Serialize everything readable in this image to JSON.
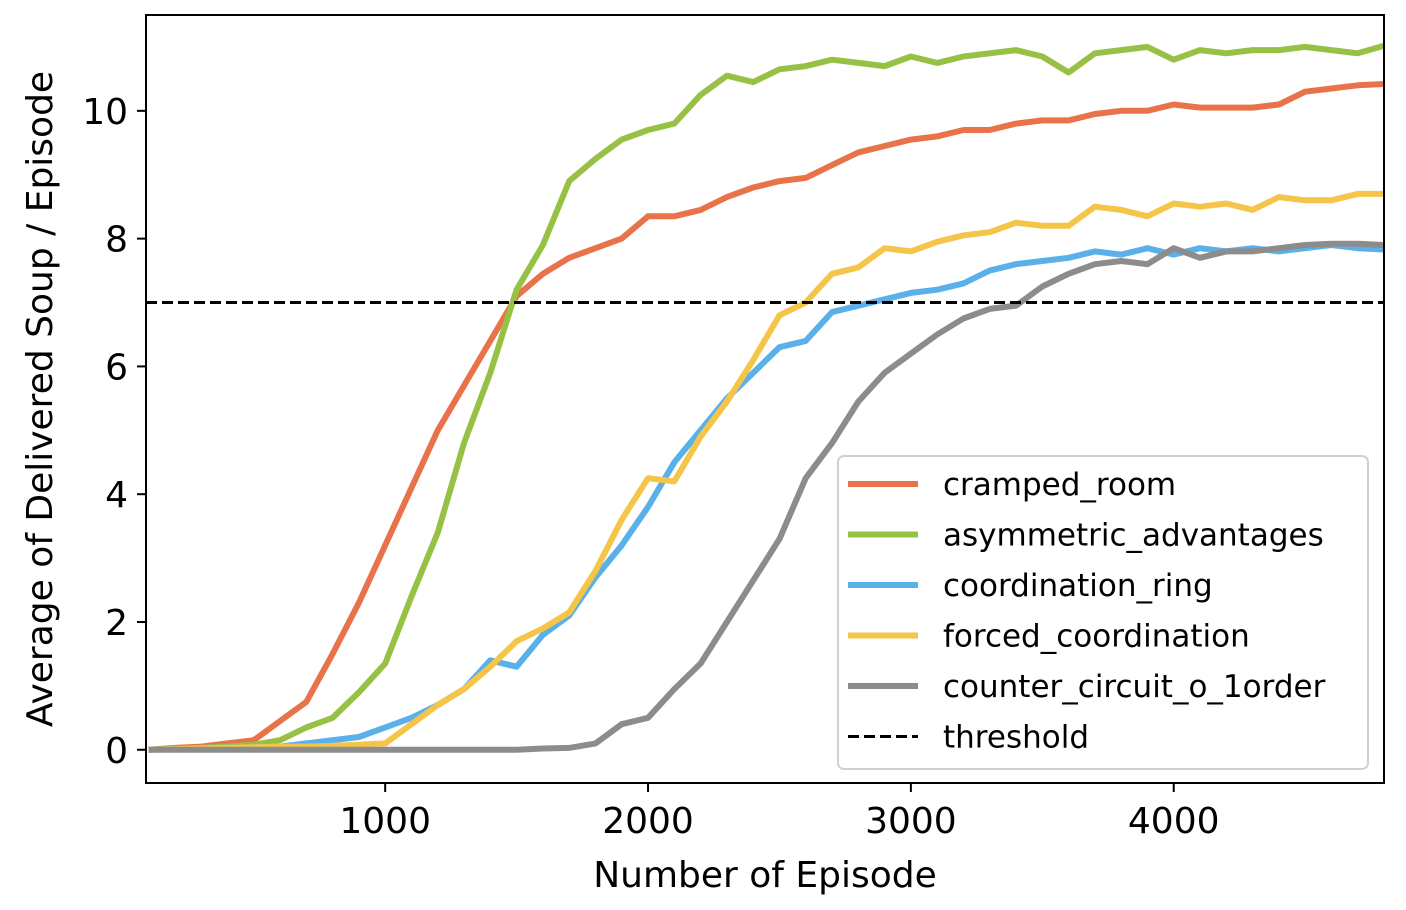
{
  "chart_data": {
    "type": "line",
    "xlabel": "Number of Episode",
    "ylabel": "Average of Delivered Soup / Episode",
    "xlim": [
      90,
      4800
    ],
    "ylim": [
      -0.52,
      11.5
    ],
    "xticks": [
      1000,
      2000,
      3000,
      4000
    ],
    "yticks": [
      0,
      2,
      4,
      6,
      8,
      10
    ],
    "grid": false,
    "legend_position": "lower-right",
    "x": [
      100,
      200,
      300,
      400,
      500,
      600,
      700,
      800,
      900,
      1000,
      1100,
      1200,
      1300,
      1400,
      1500,
      1600,
      1700,
      1800,
      1900,
      2000,
      2100,
      2200,
      2300,
      2400,
      2500,
      2600,
      2700,
      2800,
      2900,
      3000,
      3100,
      3200,
      3300,
      3400,
      3500,
      3600,
      3700,
      3800,
      3900,
      4000,
      4100,
      4200,
      4300,
      4400,
      4500,
      4600,
      4700,
      4800
    ],
    "series": [
      {
        "name": "cramped_room",
        "color": "#e8734a",
        "values": [
          0,
          0.03,
          0.05,
          0.1,
          0.15,
          0.45,
          0.75,
          1.5,
          2.3,
          3.2,
          4.1,
          5.0,
          5.7,
          6.4,
          7.1,
          7.45,
          7.7,
          7.85,
          8.0,
          8.35,
          8.35,
          8.45,
          8.65,
          8.8,
          8.9,
          8.95,
          9.15,
          9.35,
          9.45,
          9.55,
          9.6,
          9.7,
          9.7,
          9.8,
          9.85,
          9.85,
          9.95,
          10.0,
          10.0,
          10.1,
          10.05,
          10.05,
          10.05,
          10.1,
          10.3,
          10.35,
          10.4,
          10.42
        ]
      },
      {
        "name": "asymmetric_advantages",
        "color": "#97c144",
        "values": [
          0,
          0.02,
          0.03,
          0.05,
          0.08,
          0.15,
          0.35,
          0.5,
          0.9,
          1.35,
          2.4,
          3.4,
          4.8,
          5.9,
          7.2,
          7.9,
          8.9,
          9.25,
          9.55,
          9.7,
          9.8,
          10.25,
          10.55,
          10.45,
          10.65,
          10.7,
          10.8,
          10.75,
          10.7,
          10.85,
          10.75,
          10.85,
          10.9,
          10.95,
          10.85,
          10.6,
          10.9,
          10.95,
          11.0,
          10.8,
          10.95,
          10.9,
          10.95,
          10.95,
          11.0,
          10.95,
          10.9,
          11.02
        ]
      },
      {
        "name": "coordination_ring",
        "color": "#5ab0e8",
        "values": [
          0,
          0.01,
          0.02,
          0.03,
          0.04,
          0.05,
          0.1,
          0.15,
          0.2,
          0.35,
          0.5,
          0.7,
          0.95,
          1.4,
          1.3,
          1.8,
          2.1,
          2.7,
          3.2,
          3.8,
          4.5,
          5.0,
          5.5,
          5.9,
          6.3,
          6.4,
          6.85,
          6.95,
          7.05,
          7.15,
          7.2,
          7.3,
          7.5,
          7.6,
          7.65,
          7.7,
          7.8,
          7.75,
          7.85,
          7.75,
          7.85,
          7.8,
          7.85,
          7.8,
          7.85,
          7.9,
          7.85,
          7.83
        ]
      },
      {
        "name": "forced_coordination",
        "color": "#f5c54a",
        "values": [
          0,
          0.01,
          0.02,
          0.03,
          0.04,
          0.05,
          0.05,
          0.06,
          0.08,
          0.1,
          0.4,
          0.7,
          0.95,
          1.3,
          1.7,
          1.9,
          2.15,
          2.8,
          3.6,
          4.25,
          4.2,
          4.9,
          5.45,
          6.1,
          6.8,
          7.0,
          7.45,
          7.55,
          7.85,
          7.8,
          7.95,
          8.05,
          8.1,
          8.25,
          8.2,
          8.2,
          8.5,
          8.45,
          8.35,
          8.55,
          8.5,
          8.55,
          8.45,
          8.65,
          8.6,
          8.6,
          8.7,
          8.7
        ]
      },
      {
        "name": "counter_circuit_o_1order",
        "color": "#8c8c8c",
        "values": [
          0,
          0,
          0,
          0,
          0,
          0,
          0,
          0,
          0,
          0,
          0,
          0,
          0,
          0,
          0,
          0.02,
          0.03,
          0.1,
          0.4,
          0.5,
          0.95,
          1.35,
          2.0,
          2.65,
          3.3,
          4.25,
          4.8,
          5.45,
          5.9,
          6.2,
          6.5,
          6.75,
          6.9,
          6.95,
          7.25,
          7.45,
          7.6,
          7.65,
          7.6,
          7.85,
          7.7,
          7.8,
          7.8,
          7.85,
          7.9,
          7.92,
          7.92,
          7.9
        ]
      }
    ],
    "threshold": {
      "name": "threshold",
      "value": 7,
      "color": "#000000",
      "style": "dashed"
    }
  }
}
